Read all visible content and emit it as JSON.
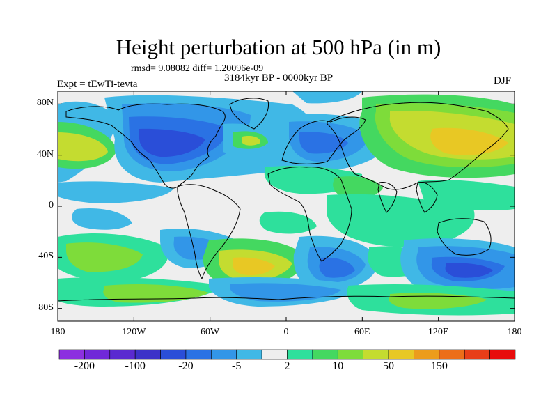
{
  "title": "Height perturbation at 500 hPa (in m)",
  "stats_line": "rmsd= 9.08082 diff= 1.20096e-09",
  "period": "3184kyr BP - 0000kyr BP",
  "experiment": "Expt = tEwTi-tevta",
  "season": "DJF",
  "lat_ticks": [
    "80N",
    "40N",
    "0",
    "40S",
    "80S"
  ],
  "lon_ticks": [
    "180",
    "120W",
    "60W",
    "0",
    "60E",
    "120E",
    "180"
  ],
  "colorbar": {
    "labels": [
      "-200",
      "-100",
      "-20",
      "-5",
      "2",
      "10",
      "50",
      "150"
    ],
    "colors": [
      "#8c30e0",
      "#7028d8",
      "#5a2ad0",
      "#3c32c8",
      "#2a4ed8",
      "#2a72e4",
      "#3296e8",
      "#40b8e6",
      "#eeeeee",
      "#2ee09c",
      "#44d860",
      "#7edc3a",
      "#c4dc30",
      "#e8c824",
      "#ec9c1c",
      "#ec6e1a",
      "#e83e18",
      "#e80c0c"
    ]
  }
}
